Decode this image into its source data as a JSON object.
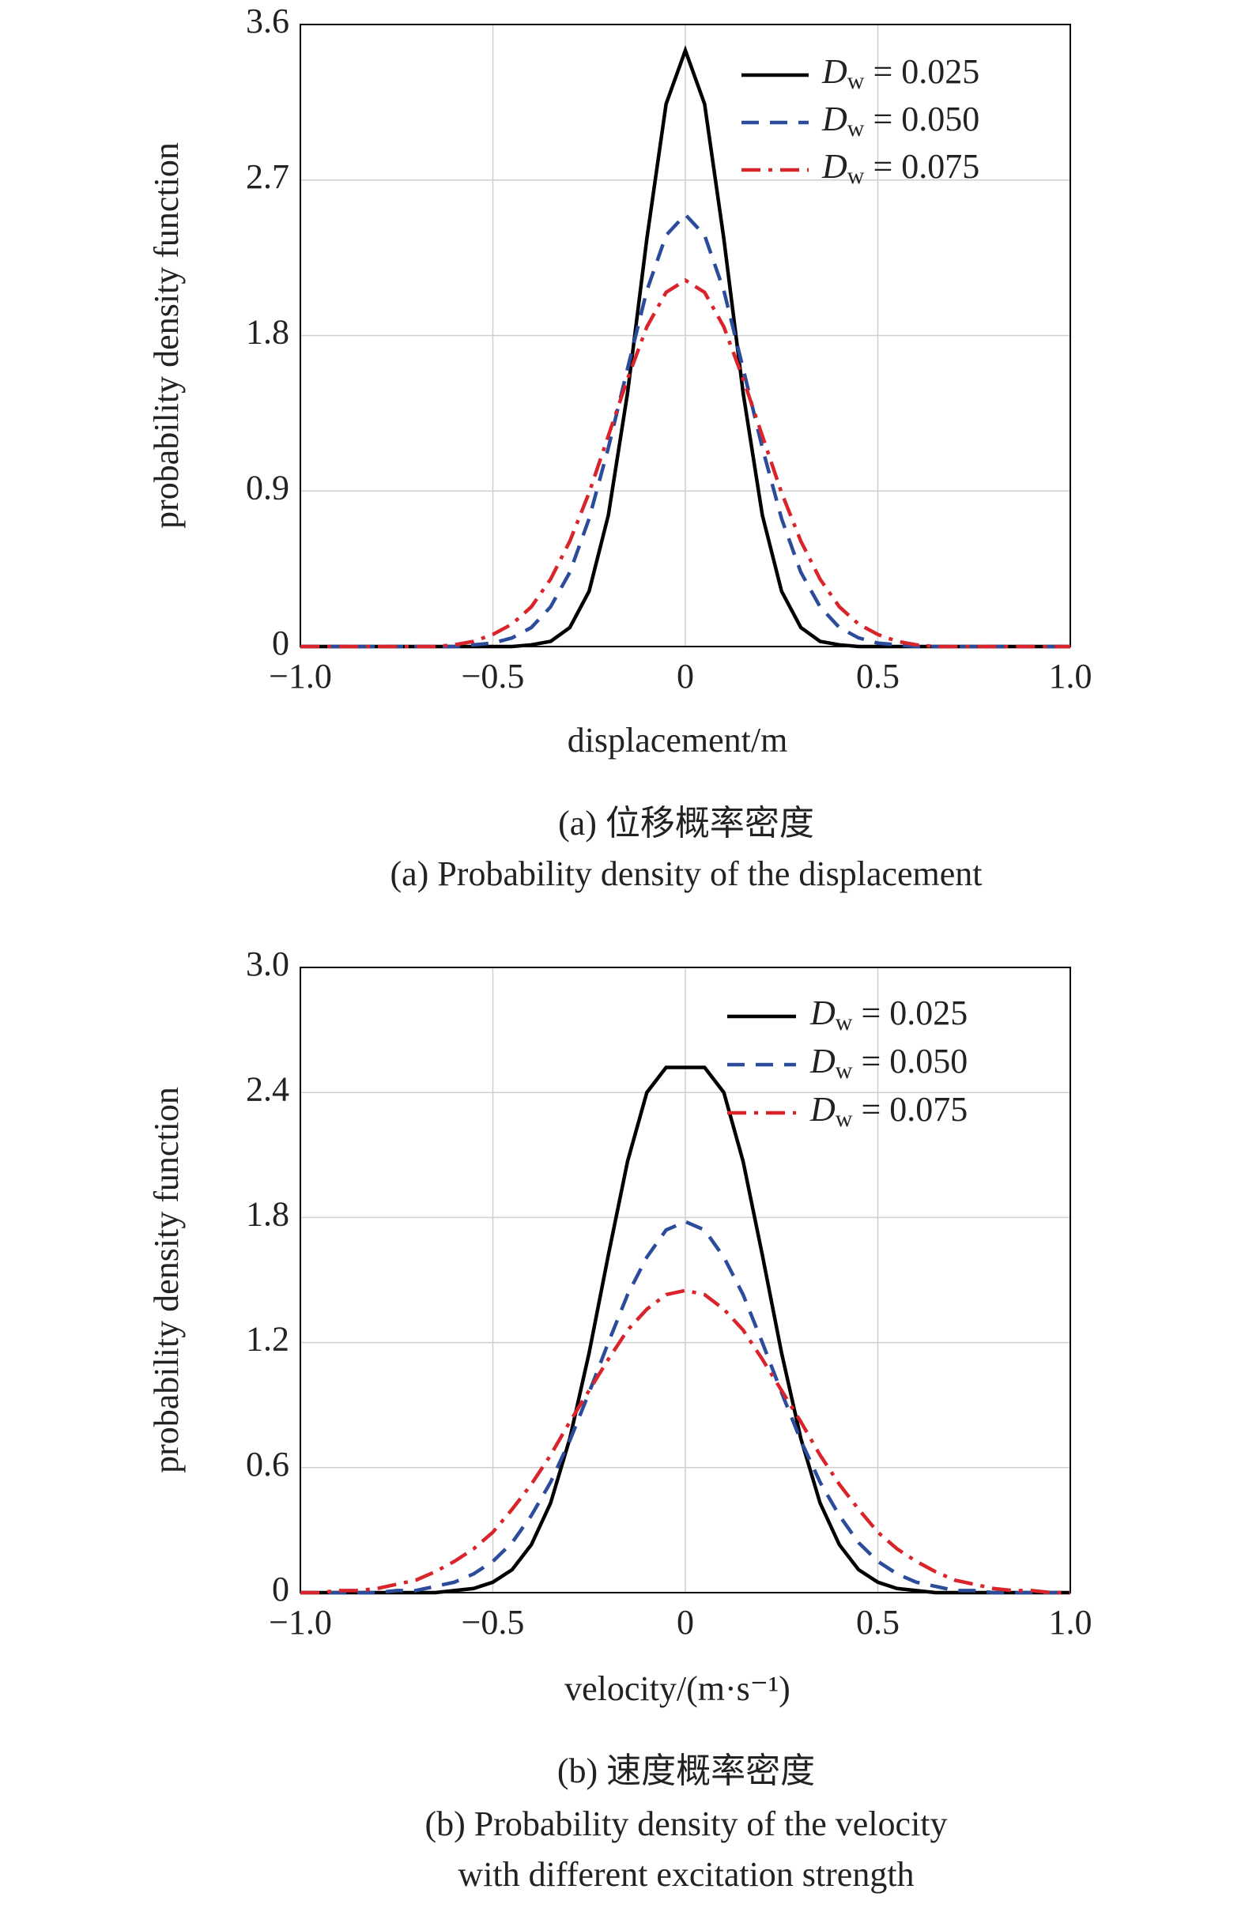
{
  "chart_data": [
    {
      "type": "line",
      "xlabel": "displacement/m",
      "ylabel": "probability density function",
      "caption": [
        "(a) 位移概率密度",
        "(a) Probability density of the displacement"
      ],
      "xlim": [
        -1,
        1
      ],
      "ylim": [
        0,
        3.6
      ],
      "xticks": [
        {
          "value": -1,
          "label": "−1.0"
        },
        {
          "value": -0.5,
          "label": "−0.5"
        },
        0,
        0.5,
        {
          "value": 1,
          "label": "1.0"
        }
      ],
      "yticks": [
        0,
        0.9,
        1.8,
        2.7,
        3.6
      ],
      "grid": true,
      "legend": "upper right",
      "x": [
        -1,
        -0.95,
        -0.9,
        -0.85,
        -0.8,
        -0.75,
        -0.7,
        -0.65,
        -0.6,
        -0.55,
        -0.5,
        -0.45,
        -0.4,
        -0.35,
        -0.3,
        -0.25,
        -0.2,
        -0.15,
        -0.1,
        -0.05,
        0,
        0.05,
        0.1,
        0.15,
        0.2,
        0.25,
        0.3,
        0.35,
        0.4,
        0.45,
        0.5,
        0.55,
        0.6,
        0.65,
        0.7,
        0.75,
        0.8,
        0.85,
        0.9,
        0.95,
        1
      ],
      "series": [
        {
          "name": "Dw = 0.025",
          "color": "#000000",
          "style": "solid",
          "values": [
            0,
            0,
            0,
            0,
            0,
            0,
            0,
            0,
            0,
            0,
            0,
            0,
            0.01,
            0.03,
            0.11,
            0.32,
            0.76,
            1.47,
            2.36,
            3.14,
            3.45,
            3.14,
            2.36,
            1.47,
            0.76,
            0.32,
            0.11,
            0.03,
            0.01,
            0,
            0,
            0,
            0,
            0,
            0,
            0,
            0,
            0,
            0,
            0,
            0
          ]
        },
        {
          "name": "Dw = 0.050",
          "color": "#2b4c9b",
          "style": "dashed",
          "values": [
            0,
            0,
            0,
            0,
            0,
            0,
            0,
            0,
            0,
            0.01,
            0.02,
            0.05,
            0.11,
            0.23,
            0.43,
            0.74,
            1.15,
            1.61,
            2.06,
            2.38,
            2.5,
            2.38,
            2.06,
            1.61,
            1.15,
            0.74,
            0.43,
            0.23,
            0.11,
            0.05,
            0.02,
            0.01,
            0,
            0,
            0,
            0,
            0,
            0,
            0,
            0,
            0
          ]
        },
        {
          "name": "Dw = 0.075",
          "color": "#d9242b",
          "style": "dashdot",
          "values": [
            0,
            0,
            0,
            0,
            0,
            0,
            0,
            0,
            0.01,
            0.03,
            0.07,
            0.13,
            0.23,
            0.39,
            0.61,
            0.89,
            1.22,
            1.55,
            1.85,
            2.05,
            2.12,
            2.05,
            1.85,
            1.55,
            1.22,
            0.89,
            0.61,
            0.39,
            0.23,
            0.13,
            0.07,
            0.03,
            0.01,
            0,
            0,
            0,
            0,
            0,
            0,
            0,
            0
          ]
        }
      ]
    },
    {
      "type": "line",
      "xlabel": "velocity/(m·s⁻¹)",
      "ylabel": "probability density function",
      "caption": [
        "(b) 速度概率密度",
        "(b) Probability density of the velocity",
        "with different excitation strength"
      ],
      "xlim": [
        -1,
        1
      ],
      "ylim": [
        0,
        3
      ],
      "xticks": [
        {
          "value": -1,
          "label": "−1.0"
        },
        {
          "value": -0.5,
          "label": "−0.5"
        },
        0,
        0.5,
        {
          "value": 1,
          "label": "1.0"
        }
      ],
      "yticks": [
        0,
        0.6,
        1.2,
        1.8,
        2.4,
        {
          "value": 3,
          "label": "3.0"
        }
      ],
      "grid": true,
      "legend": "upper right",
      "x": [
        -1,
        -0.95,
        -0.9,
        -0.85,
        -0.8,
        -0.75,
        -0.7,
        -0.65,
        -0.6,
        -0.55,
        -0.5,
        -0.45,
        -0.4,
        -0.35,
        -0.3,
        -0.25,
        -0.2,
        -0.15,
        -0.1,
        -0.05,
        0,
        0.05,
        0.1,
        0.15,
        0.2,
        0.25,
        0.3,
        0.35,
        0.4,
        0.45,
        0.5,
        0.55,
        0.6,
        0.65,
        0.7,
        0.75,
        0.8,
        0.85,
        0.9,
        0.95,
        1
      ],
      "series": [
        {
          "name": "Dw = 0.025",
          "color": "#000000",
          "style": "solid",
          "values": [
            0,
            0,
            0,
            0,
            0,
            0,
            0,
            0,
            0.01,
            0.02,
            0.05,
            0.11,
            0.23,
            0.43,
            0.74,
            1.15,
            1.62,
            2.07,
            2.4,
            2.52,
            2.52,
            2.52,
            2.4,
            2.07,
            1.62,
            1.15,
            0.74,
            0.43,
            0.23,
            0.11,
            0.05,
            0.02,
            0.01,
            0,
            0,
            0,
            0,
            0,
            0,
            0,
            0
          ]
        },
        {
          "name": "Dw = 0.050",
          "color": "#2b4c9b",
          "style": "dashed",
          "values": [
            0,
            0,
            0,
            0,
            0,
            0.01,
            0.01,
            0.03,
            0.05,
            0.09,
            0.15,
            0.24,
            0.37,
            0.53,
            0.73,
            0.96,
            1.2,
            1.43,
            1.61,
            1.74,
            1.78,
            1.74,
            1.61,
            1.43,
            1.2,
            0.96,
            0.73,
            0.53,
            0.37,
            0.24,
            0.15,
            0.09,
            0.05,
            0.03,
            0.01,
            0.01,
            0,
            0,
            0,
            0,
            0
          ]
        },
        {
          "name": "Dw = 0.075",
          "color": "#d9242b",
          "style": "dashdot",
          "values": [
            0,
            0,
            0.01,
            0.01,
            0.02,
            0.04,
            0.06,
            0.1,
            0.15,
            0.21,
            0.29,
            0.4,
            0.52,
            0.66,
            0.82,
            0.97,
            1.12,
            1.26,
            1.36,
            1.43,
            1.45,
            1.43,
            1.36,
            1.26,
            1.12,
            0.97,
            0.82,
            0.66,
            0.52,
            0.4,
            0.29,
            0.21,
            0.15,
            0.1,
            0.06,
            0.04,
            0.02,
            0.01,
            0.01,
            0,
            0
          ]
        }
      ]
    }
  ]
}
